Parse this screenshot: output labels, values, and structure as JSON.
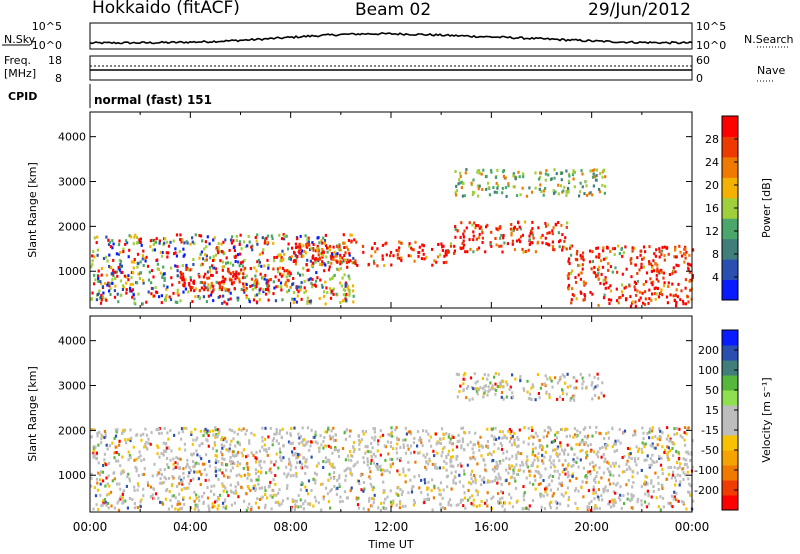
{
  "header": {
    "station": "Hokkaido (fitACF)",
    "beam": "Beam 02",
    "date": "29/Jun/2012"
  },
  "top_panels": {
    "nsky_label": "N.Sky",
    "nsky_ticks": [
      "10^5",
      "10^0"
    ],
    "nsearch_label": "N.Search",
    "nsearch_ticks": [
      "10^5",
      "10^0"
    ],
    "freq_label_lines": [
      "Freq.",
      "[MHz]"
    ],
    "freq_ticks": [
      "18",
      "8"
    ],
    "nave_label": "Nave",
    "nave_ticks": [
      "60",
      "0"
    ],
    "cpid_label": "CPID",
    "cpid_value": "normal (fast) 151"
  },
  "chart_data": [
    {
      "type": "heatmap",
      "panel": "power",
      "xlabel": "Time UT",
      "ylabel": "Slant Range [km]",
      "xlim": [
        0,
        24
      ],
      "ylim": [
        180,
        4550
      ],
      "yticks": [
        1000,
        2000,
        3000,
        4000
      ],
      "xticks": [
        "00:00",
        "04:00",
        "08:00",
        "12:00",
        "16:00",
        "20:00",
        "00:00"
      ],
      "colorbar": {
        "label": "Power [dB]",
        "ticks": [
          "28",
          "24",
          "20",
          "16",
          "12",
          "8",
          "4"
        ],
        "range": [
          0,
          30
        ],
        "colors": [
          "#0a1cff",
          "#2a4fb0",
          "#3f7e7a",
          "#4aa66a",
          "#9fcf3a",
          "#f4b200",
          "#f07a00",
          "#ee3a00",
          "#ff0000"
        ]
      },
      "bands": [
        {
          "t_start": 0.0,
          "t_end": 10.5,
          "r_min": 300,
          "r_max": 1850,
          "dominant": "mixed"
        },
        {
          "t_start": 3.5,
          "t_end": 8.0,
          "r_min": 600,
          "r_max": 1100,
          "dominant": "strong"
        },
        {
          "t_start": 8.0,
          "t_end": 14.5,
          "r_min": 1150,
          "r_max": 1700,
          "dominant": "strong"
        },
        {
          "t_start": 14.5,
          "t_end": 19.0,
          "r_min": 1450,
          "r_max": 2150,
          "dominant": "strong"
        },
        {
          "t_start": 19.0,
          "t_end": 24.0,
          "r_min": 250,
          "r_max": 1600,
          "dominant": "strong"
        },
        {
          "t_start": 14.5,
          "t_end": 20.5,
          "r_min": 2700,
          "r_max": 3300,
          "dominant": "weak"
        }
      ]
    },
    {
      "type": "heatmap",
      "panel": "velocity",
      "xlabel": "Time UT",
      "ylabel": "Slant Range [km]",
      "xlim": [
        0,
        24
      ],
      "ylim": [
        180,
        4550
      ],
      "yticks": [
        1000,
        2000,
        3000,
        4000
      ],
      "xticks": [
        "00:00",
        "04:00",
        "08:00",
        "12:00",
        "16:00",
        "20:00",
        "00:00"
      ],
      "colorbar": {
        "label": "Velocity [m s⁻¹]",
        "ticks": [
          "200",
          "100",
          "50",
          "15",
          "-15",
          "-50",
          "-100",
          "-200"
        ],
        "range": [
          -250,
          250
        ],
        "colors": [
          "#ff0000",
          "#f03c00",
          "#f07a00",
          "#f4a300",
          "#f7c300",
          "#bdbdbd",
          "#bdbdbd",
          "#8fe050",
          "#55b83c",
          "#3f7e7a",
          "#2a4fb0",
          "#0a1cff"
        ]
      },
      "bands": [
        {
          "t_start": 0.0,
          "t_end": 24.0,
          "r_min": 250,
          "r_max": 2100,
          "dominant": "ground-scatter"
        },
        {
          "t_start": 14.5,
          "t_end": 20.5,
          "r_min": 2700,
          "r_max": 3300,
          "dominant": "ground-scatter"
        }
      ]
    }
  ]
}
